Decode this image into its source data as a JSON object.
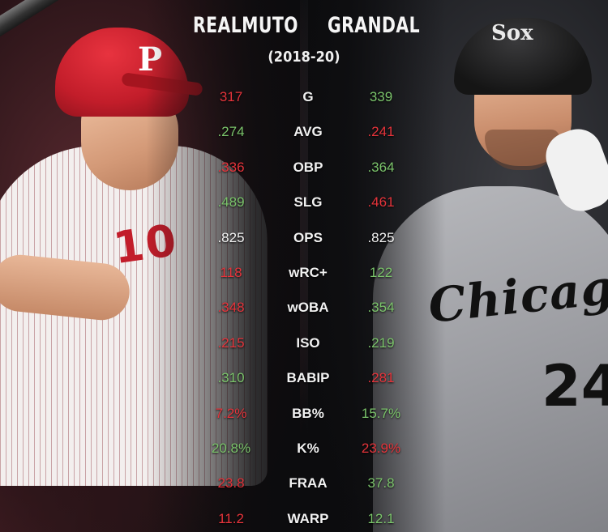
{
  "header": {
    "left_name": "REALMUTO",
    "right_name": "GRANDAL",
    "period": "(2018-20)"
  },
  "colors": {
    "better": "#7bc46b",
    "worse": "#e5343b",
    "equal": "#f2f2f2",
    "phillies_red": "#c21d2a"
  },
  "images": {
    "left_player": {
      "jersey_number": "10",
      "logo": "P"
    },
    "right_player": {
      "jersey_text": "Chicago",
      "jersey_number": "24",
      "logo": "Sox"
    }
  },
  "stats": [
    {
      "label": "G",
      "left": "317",
      "right": "339",
      "left_status": "worse",
      "right_status": "better"
    },
    {
      "label": "AVG",
      "left": ".274",
      "right": ".241",
      "left_status": "better",
      "right_status": "worse"
    },
    {
      "label": "OBP",
      "left": ".336",
      "right": ".364",
      "left_status": "worse",
      "right_status": "better"
    },
    {
      "label": "SLG",
      "left": ".489",
      "right": ".461",
      "left_status": "better",
      "right_status": "worse"
    },
    {
      "label": "OPS",
      "left": ".825",
      "right": ".825",
      "left_status": "even",
      "right_status": "even"
    },
    {
      "label": "wRC+",
      "left": "118",
      "right": "122",
      "left_status": "worse",
      "right_status": "better"
    },
    {
      "label": "wOBA",
      "left": ".348",
      "right": ".354",
      "left_status": "worse",
      "right_status": "better"
    },
    {
      "label": "ISO",
      "left": ".215",
      "right": ".219",
      "left_status": "worse",
      "right_status": "better"
    },
    {
      "label": "BABIP",
      "left": ".310",
      "right": ".281",
      "left_status": "better",
      "right_status": "worse"
    },
    {
      "label": "BB%",
      "left": "7.2%",
      "right": "15.7%",
      "left_status": "worse",
      "right_status": "better"
    },
    {
      "label": "K%",
      "left": "20.8%",
      "right": "23.9%",
      "left_status": "better",
      "right_status": "worse"
    },
    {
      "label": "FRAA",
      "left": "23.8",
      "right": "37.8",
      "left_status": "worse",
      "right_status": "better"
    },
    {
      "label": "WARP",
      "left": "11.2",
      "right": "12.1",
      "left_status": "worse",
      "right_status": "better"
    }
  ]
}
